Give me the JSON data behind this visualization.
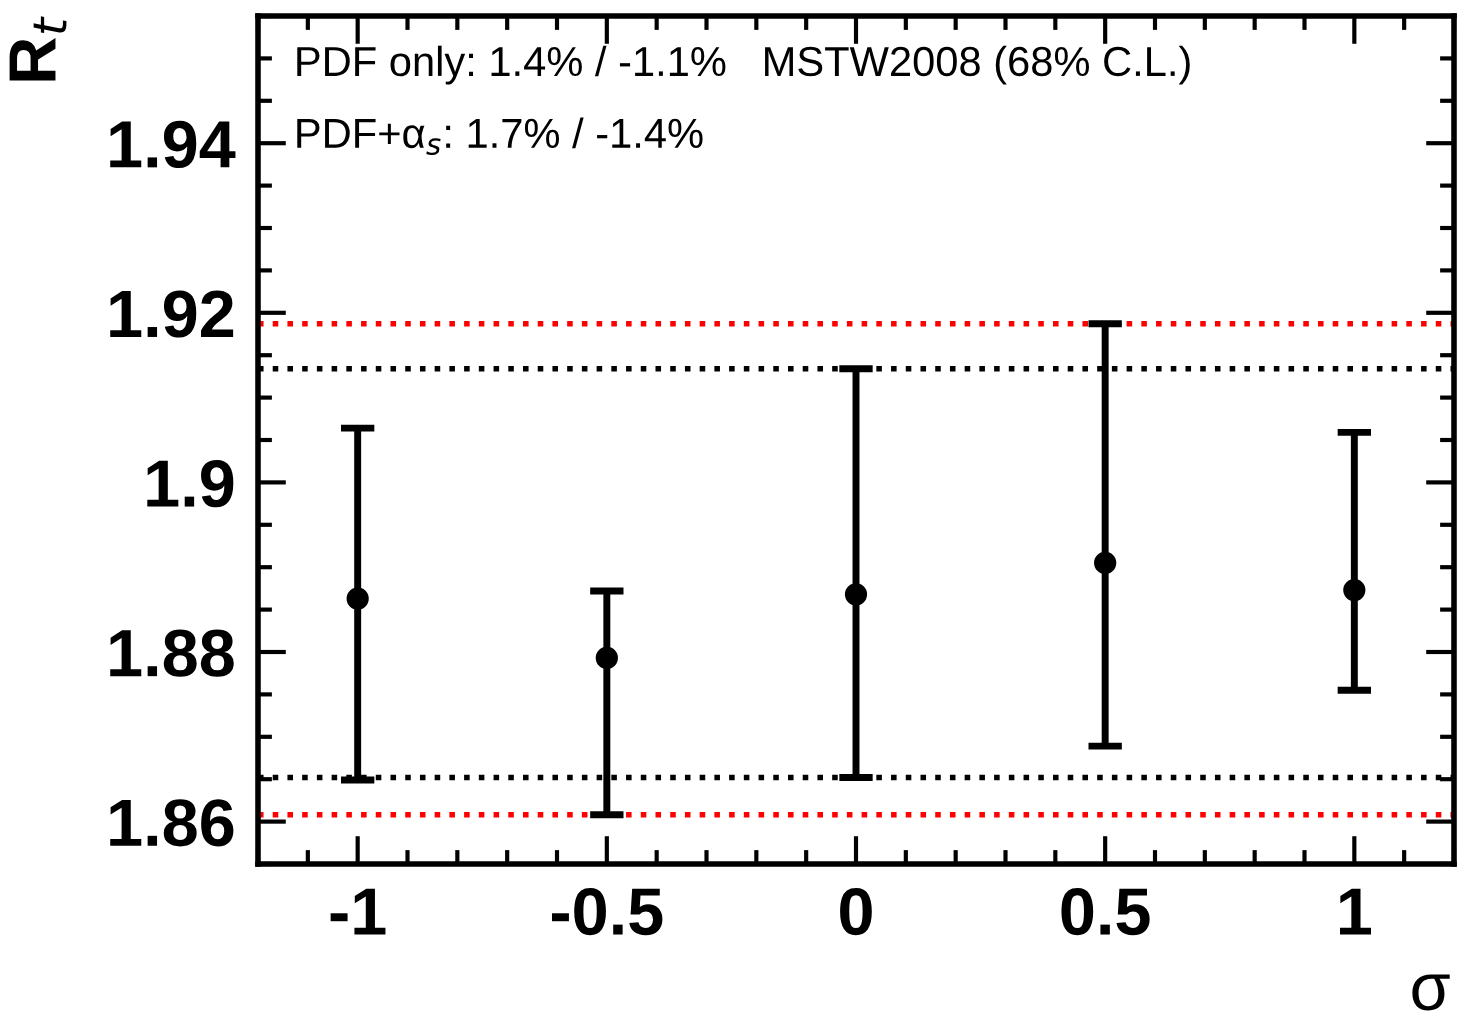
{
  "chart_data": {
    "type": "scatter",
    "xlabel": "σ",
    "ylabel": "R$_{t}$",
    "x": [
      -1,
      -0.5,
      0,
      0.5,
      1
    ],
    "values": [
      1.8863,
      1.8793,
      1.8868,
      1.8905,
      1.8873
    ],
    "errors": [
      [
        1.8649,
        1.9064
      ],
      [
        1.8608,
        1.8872
      ],
      [
        1.8652,
        1.9134
      ],
      [
        1.8689,
        1.9187
      ],
      [
        1.8755,
        1.9059
      ]
    ],
    "color": "#000000",
    "marker": "circle",
    "xlim": [
      -1.2,
      1.2
    ],
    "xticks": [
      -1,
      -0.5,
      0,
      0.5,
      1
    ],
    "ylim": [
      1.855,
      1.955
    ],
    "yticks": [
      1.86,
      1.88,
      1.9,
      1.92,
      1.94
    ],
    "ref_lines": [
      {
        "axis": "y",
        "value": 1.9187,
        "color": "#ff0000",
        "line_style": "dotted"
      },
      {
        "axis": "y",
        "value": 1.9134,
        "color": "#000000",
        "line_style": "dotted"
      },
      {
        "axis": "y",
        "value": 1.8652,
        "color": "#000000",
        "line_style": "dotted"
      },
      {
        "axis": "y",
        "value": 1.8608,
        "color": "#ff0000",
        "line_style": "dotted"
      }
    ],
    "annotations": [
      "PDF only: 1.4% / -1.1%   MSTW2008 (68% C.L.)",
      "PDF+α$_{s}$: 1.7% / -1.4%"
    ],
    "grid": false,
    "legend": false
  }
}
